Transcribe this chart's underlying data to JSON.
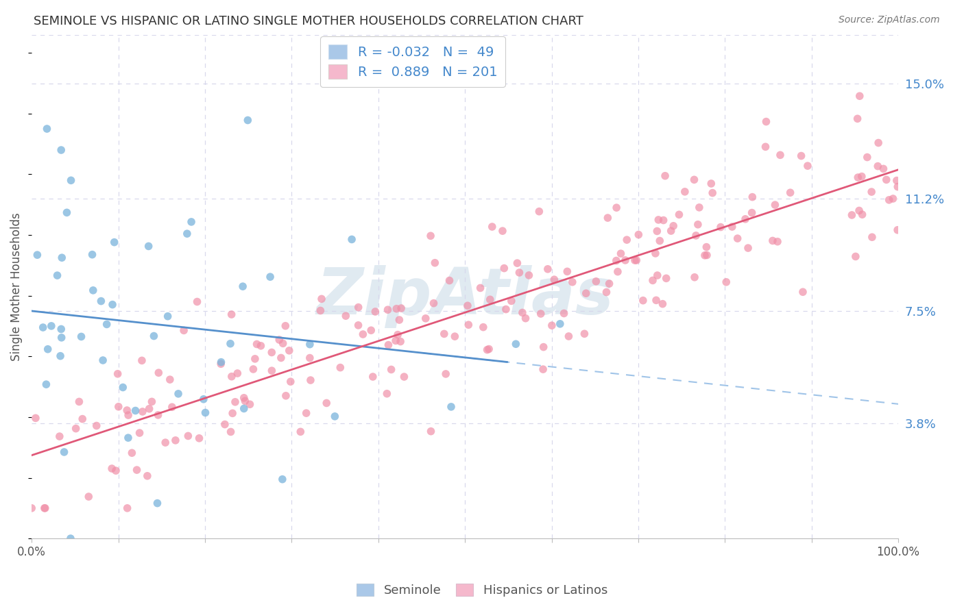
{
  "title": "SEMINOLE VS HISPANIC OR LATINO SINGLE MOTHER HOUSEHOLDS CORRELATION CHART",
  "source_text": "Source: ZipAtlas.com",
  "ylabel": "Single Mother Households",
  "y_tick_labels_right": [
    "15.0%",
    "11.2%",
    "7.5%",
    "3.8%"
  ],
  "y_tick_positions_right": [
    0.15,
    0.112,
    0.075,
    0.038
  ],
  "seminole_color": "#7ab4dc",
  "hispanic_color": "#f090a8",
  "seminole_line_color": "#5590cc",
  "hispanic_line_color": "#e05878",
  "seminole_dash_color": "#a0c4e8",
  "background_color": "#ffffff",
  "grid_color": "#d8d8ec",
  "watermark_color": "#ccdce8",
  "watermark_text": "ZipAtlas",
  "seminole_R": -0.032,
  "seminole_N": 49,
  "hispanic_R": 0.889,
  "hispanic_N": 201,
  "xlim": [
    0.0,
    1.0
  ],
  "ylim": [
    0.0,
    0.166
  ],
  "legend_label_color": "#4488cc",
  "legend_sem_color": "#aac8e8",
  "legend_hisp_color": "#f5b8cc",
  "bottom_legend_color": "#555555",
  "title_color": "#333333",
  "source_color": "#777777",
  "axis_label_color": "#555555"
}
